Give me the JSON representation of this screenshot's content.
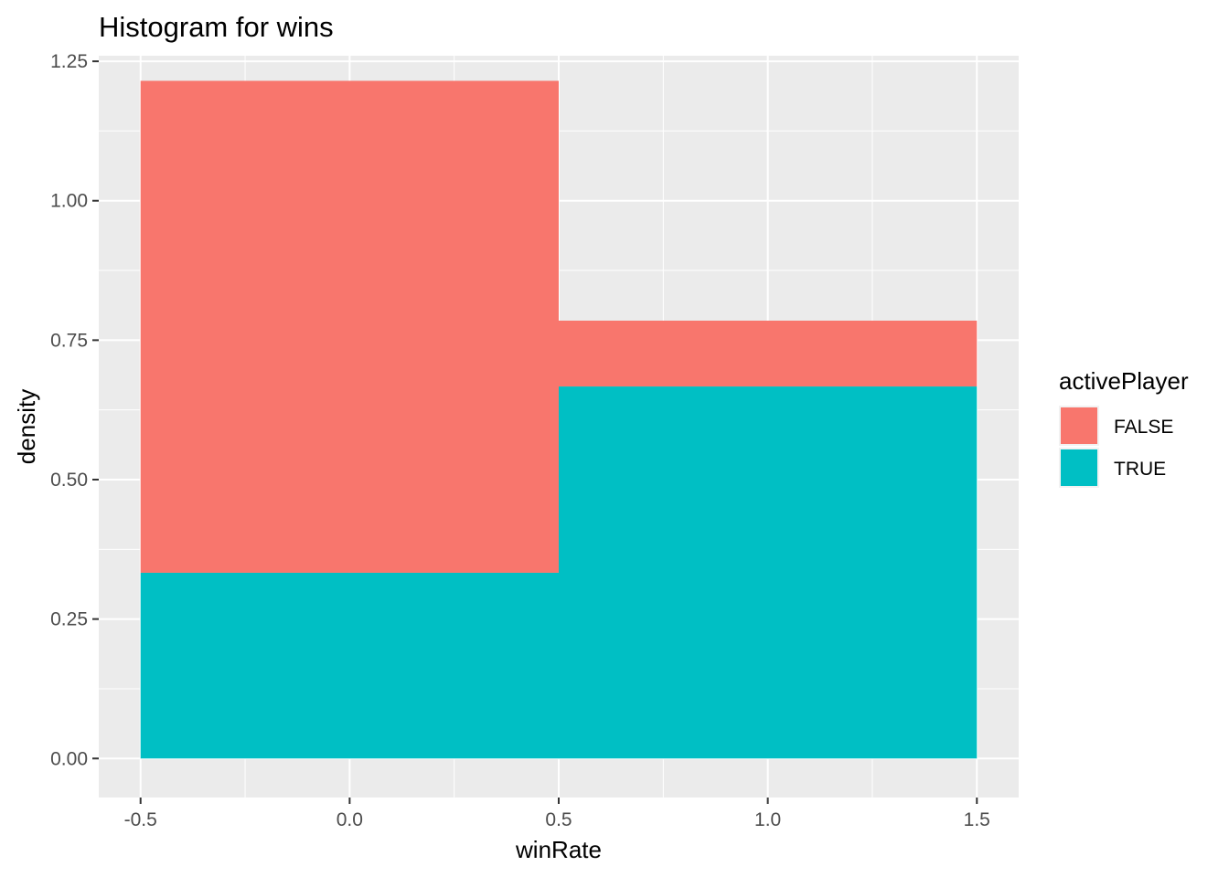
{
  "chart_data": {
    "type": "bar",
    "subtype": "stacked-histogram",
    "title": "Histogram for wins",
    "xlabel": "winRate",
    "ylabel": "density",
    "xlim": [
      -0.6,
      1.6
    ],
    "ylim": [
      -0.07,
      1.26
    ],
    "x_ticks": [
      -0.5,
      0.0,
      0.5,
      1.0,
      1.5
    ],
    "x_tick_labels": [
      "-0.5",
      "0.0",
      "0.5",
      "1.0",
      "1.5"
    ],
    "y_ticks": [
      0.0,
      0.25,
      0.5,
      0.75,
      1.0,
      1.25
    ],
    "y_tick_labels": [
      "0.00",
      "0.25",
      "0.50",
      "0.75",
      "1.00",
      "1.25"
    ],
    "bins": [
      {
        "xmin": -0.5,
        "xmax": 0.5
      },
      {
        "xmin": 0.5,
        "xmax": 1.5
      }
    ],
    "series": [
      {
        "name": "TRUE",
        "color": "#00BFC4",
        "values": [
          0.333,
          0.667
        ]
      },
      {
        "name": "FALSE",
        "color": "#F8766D",
        "values": [
          0.882,
          0.118
        ]
      }
    ],
    "stacking": "TRUE bottom, FALSE on top",
    "legend": {
      "title": "activePlayer",
      "position": "right",
      "entries": [
        {
          "label": "FALSE",
          "color": "#F8766D"
        },
        {
          "label": "TRUE",
          "color": "#00BFC4"
        }
      ]
    },
    "grid": true,
    "panel_background": "#EBEBEB",
    "grid_color": "#FFFFFF"
  }
}
